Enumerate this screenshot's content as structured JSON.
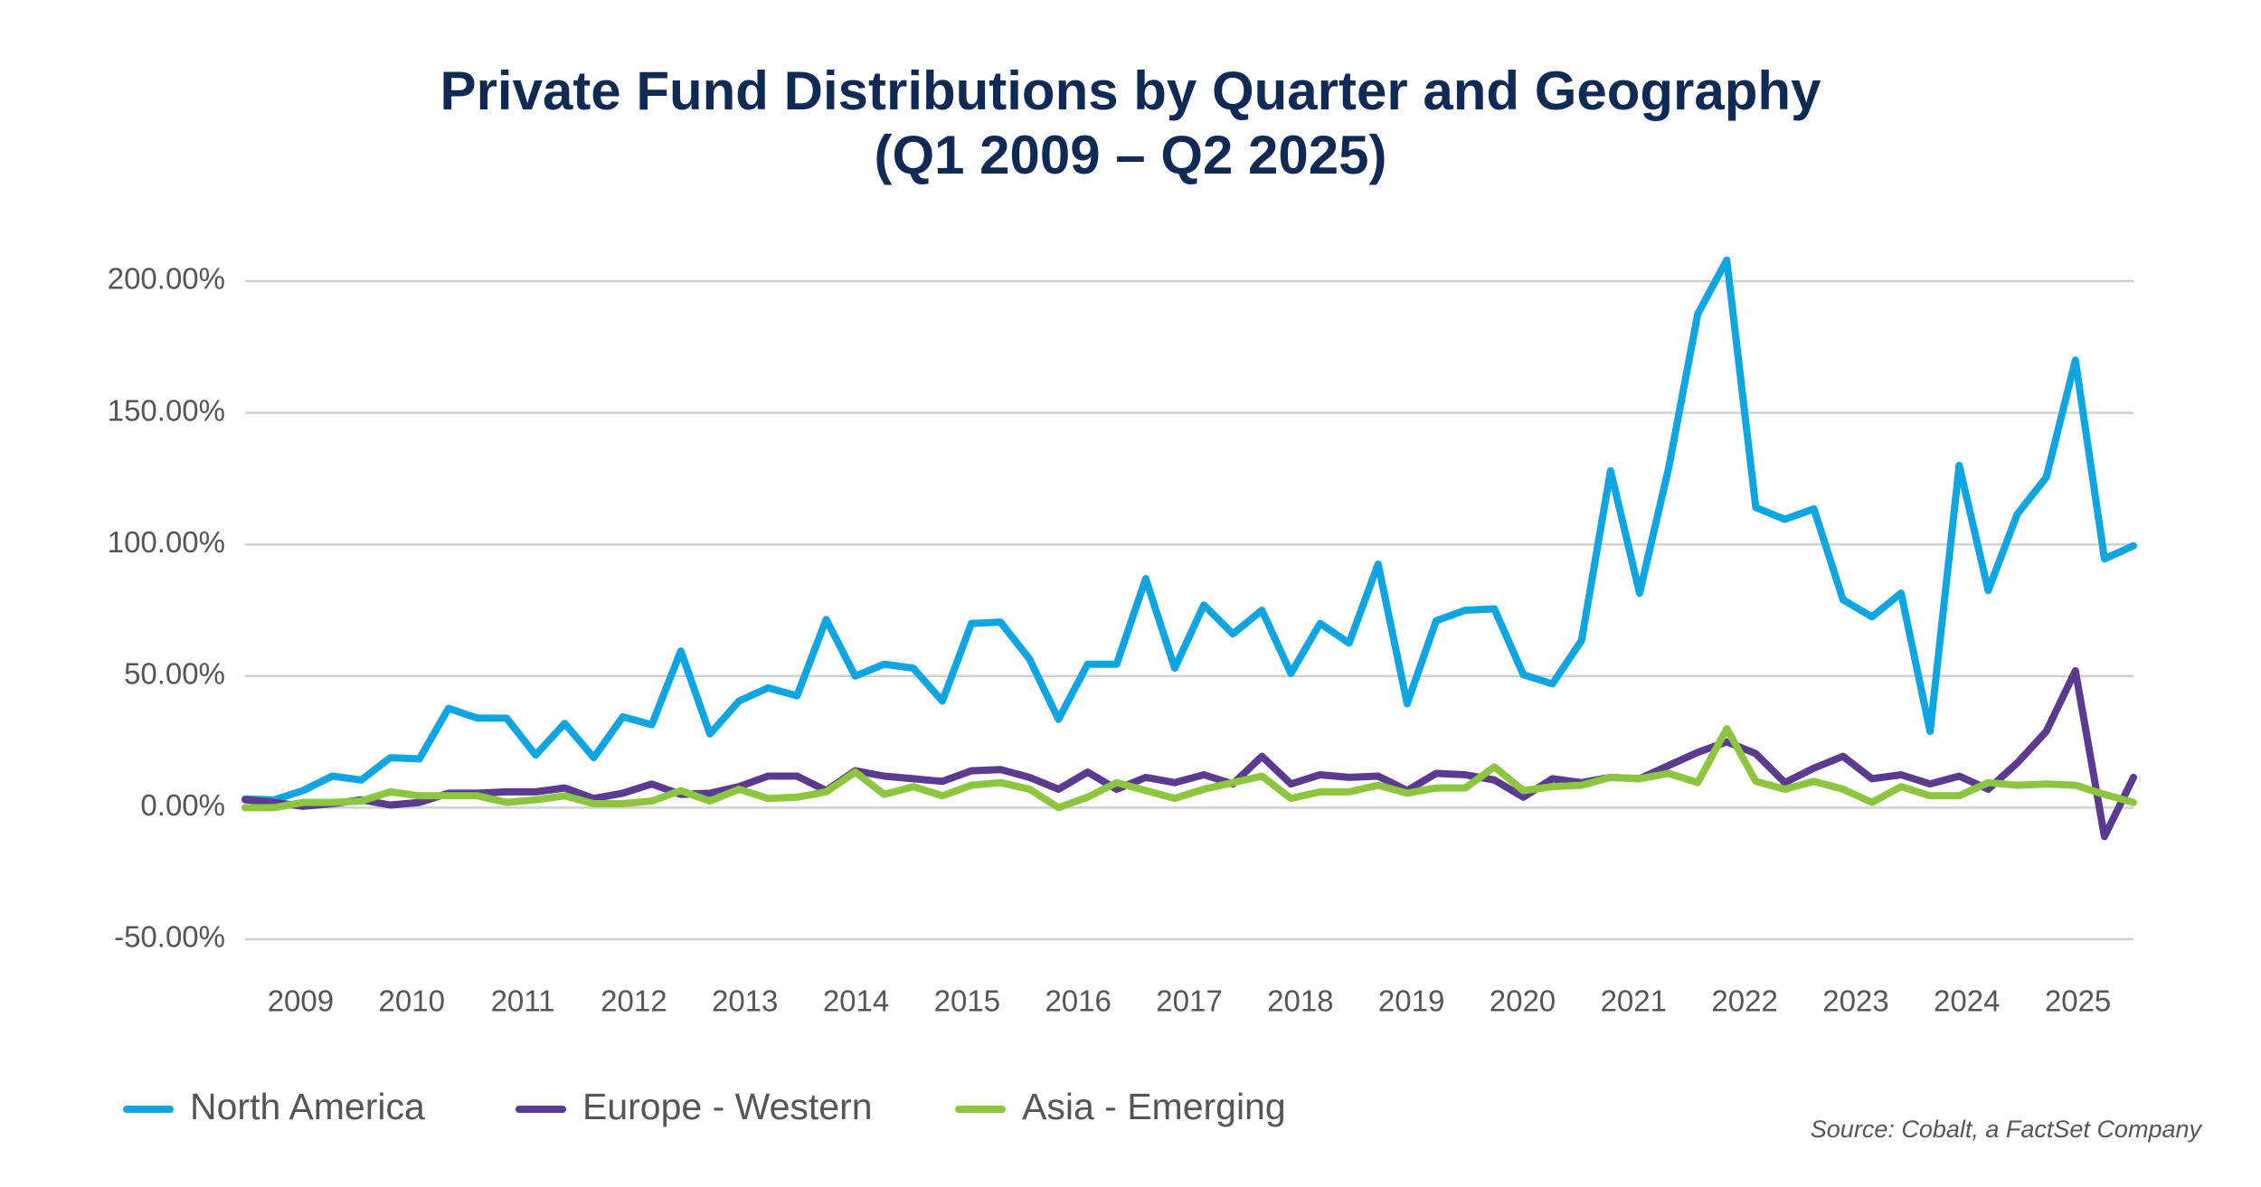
{
  "chart_data": {
    "type": "line",
    "title": "Private Fund Distributions by Quarter and Geography",
    "subtitle": "(Q1 2009 – Q2 2025)",
    "source": "Source: Cobalt, a FactSet Company",
    "categories": [
      "2009",
      null,
      null,
      null,
      "2010",
      null,
      null,
      null,
      "2011",
      null,
      null,
      null,
      "2012",
      null,
      null,
      null,
      "2013",
      null,
      null,
      null,
      "2014",
      null,
      null,
      null,
      "2015",
      null,
      null,
      null,
      "2016",
      null,
      null,
      null,
      "2017",
      null,
      null,
      null,
      "2018",
      null,
      null,
      null,
      "2019",
      null,
      null,
      null,
      "2020",
      null,
      null,
      null,
      "2021",
      null,
      null,
      null,
      "2022",
      null,
      null,
      null,
      "2023",
      null,
      null,
      null,
      "2024",
      null,
      null,
      null,
      "2025",
      null
    ],
    "series": [
      {
        "name": "North America",
        "color": "#0ea5e3",
        "values": [
          3.3,
          3,
          6.5,
          12,
          10.5,
          19,
          18.5,
          37.7,
          34,
          34,
          20,
          32,
          19,
          34.5,
          31.5,
          59.5,
          28,
          40.5,
          45.5,
          42.5,
          71.5,
          50,
          54.5,
          53,
          40.5,
          70,
          70.5,
          56.5,
          33.5,
          54.5,
          54.5,
          87,
          53,
          77,
          66,
          75,
          51,
          70,
          62.5,
          92.5,
          39.5,
          71,
          75,
          75.5,
          50.5,
          47,
          63.5,
          128,
          81.5,
          129,
          187.5,
          208,
          114,
          109.5,
          113.5,
          79,
          72.5,
          81.5,
          29,
          130,
          82.5,
          111.5,
          125.5,
          170,
          94.5,
          99.5
        ]
      },
      {
        "name": "Europe - Western",
        "color": "#5b3a8f",
        "values": [
          3,
          2,
          0.5,
          1.5,
          3,
          1,
          2,
          5.5,
          5.5,
          6,
          6,
          7.5,
          3.5,
          5.5,
          9,
          5,
          5.5,
          8,
          12,
          12,
          6.5,
          14,
          12,
          11,
          10,
          14,
          14.5,
          11.5,
          7,
          13.5,
          7,
          11.5,
          9.5,
          12.5,
          9,
          19.5,
          9,
          12.5,
          11.5,
          12,
          6.5,
          13,
          12.5,
          10.5,
          4,
          11,
          9.5,
          11.5,
          11,
          16,
          21,
          25,
          20.5,
          9.5,
          15,
          19.5,
          11,
          12.5,
          9,
          12,
          7,
          17,
          29,
          52,
          -11,
          11.5
        ]
      },
      {
        "name": "Asia - Emerging",
        "color": "#8cc63f",
        "values": [
          0,
          0,
          2,
          2,
          2.5,
          6,
          4.5,
          4.5,
          4.5,
          2,
          3,
          4.5,
          1.5,
          1.5,
          2.5,
          6.5,
          2.5,
          7,
          3.5,
          4,
          6,
          13.5,
          5,
          8,
          4.5,
          8.5,
          9.5,
          7,
          0,
          4,
          9.5,
          6.5,
          3.5,
          7,
          9.5,
          12,
          3.5,
          6,
          6,
          8.5,
          5.5,
          7.5,
          7.5,
          15.5,
          6.5,
          8,
          8.5,
          11.5,
          11,
          13,
          9.5,
          30,
          10,
          7,
          10,
          7,
          2,
          8,
          4.5,
          4.5,
          9.5,
          8.5,
          9,
          8.5,
          5,
          2
        ]
      }
    ],
    "ylim": [
      -50,
      200
    ],
    "yticks": [
      {
        "value": -50,
        "label": "-50.00%"
      },
      {
        "value": 0,
        "label": "0.00%"
      },
      {
        "value": 50,
        "label": "50.00%"
      },
      {
        "value": 100,
        "label": "100.00%"
      },
      {
        "value": 150,
        "label": "150.00%"
      },
      {
        "value": 200,
        "label": "200.00%"
      }
    ],
    "grid": true,
    "legend": "bottom-left"
  }
}
